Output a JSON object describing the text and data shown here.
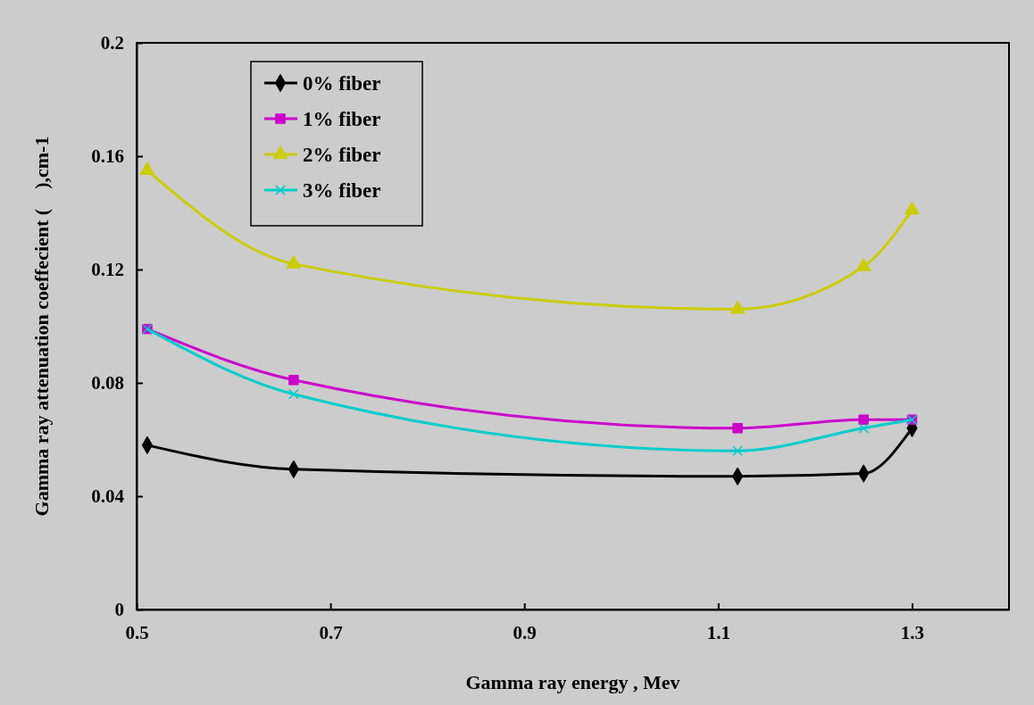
{
  "chart_data": {
    "type": "line",
    "xlabel": "Gamma ray energy , Mev",
    "ylabel": "Gamma ray attenuation coeffecient (    ),cm-1",
    "x": [
      0.511,
      0.662,
      1.12,
      1.25,
      1.3
    ],
    "xlim": [
      0.5,
      1.4
    ],
    "xticks": [
      0.5,
      0.7,
      0.9,
      1.1,
      1.3
    ],
    "ylim": [
      0,
      0.2
    ],
    "yticks": [
      0,
      0.04,
      0.08,
      0.12,
      0.16,
      0.2
    ],
    "grid": false,
    "legend": "top left",
    "line_style": "solid",
    "series": [
      {
        "name": "0% fiber",
        "color": "#000000",
        "marker": "diamond",
        "values": [
          0.058,
          0.0495,
          0.047,
          0.048,
          0.064
        ]
      },
      {
        "name": "1% fiber",
        "color": "#cc00cc",
        "marker": "square",
        "values": [
          0.099,
          0.081,
          0.064,
          0.067,
          0.067
        ]
      },
      {
        "name": "2% fiber",
        "color": "#cccc00",
        "marker": "triangle",
        "values": [
          0.155,
          0.122,
          0.106,
          0.121,
          0.141
        ]
      },
      {
        "name": "3% fiber",
        "color": "#00cccc",
        "marker": "cross",
        "values": [
          0.099,
          0.076,
          0.056,
          0.064,
          0.067
        ]
      }
    ]
  }
}
